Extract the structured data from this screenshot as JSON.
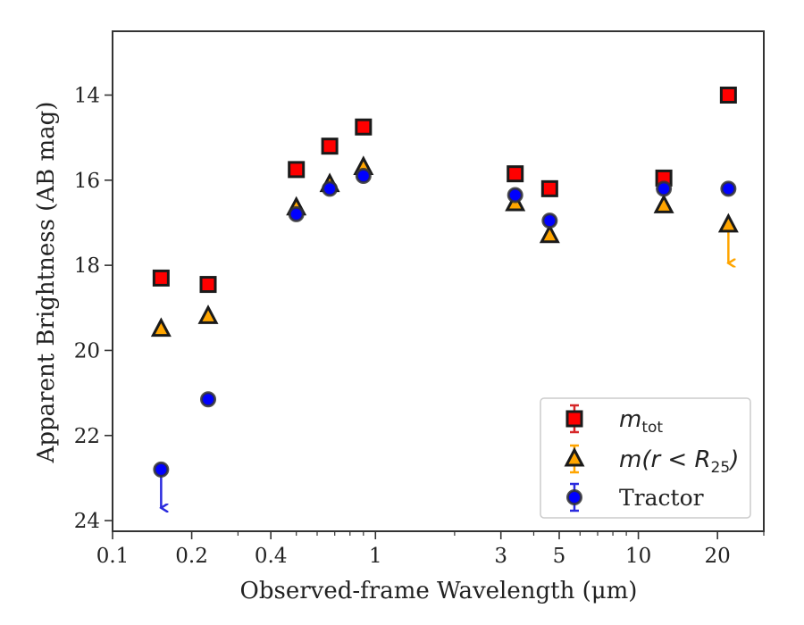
{
  "chart_data": {
    "type": "scatter",
    "title": "",
    "xlabel": "Observed-frame Wavelength (μm)",
    "ylabel": "Apparent Brightness (AB mag)",
    "xscale": "log",
    "yscale": "linear-inverted",
    "xlim": [
      0.1,
      30
    ],
    "ylim": [
      24.25,
      12.5
    ],
    "xticks": [
      0.1,
      0.2,
      0.4,
      1,
      3,
      5,
      10,
      20
    ],
    "xtick_labels": [
      "0.1",
      "0.2",
      "0.4",
      "1",
      "3",
      "5",
      "10",
      "20"
    ],
    "yticks": [
      14,
      16,
      18,
      20,
      22,
      24
    ],
    "ytick_labels": [
      "14",
      "16",
      "18",
      "20",
      "22",
      "24"
    ],
    "grid": false,
    "legend_position": "lower-right",
    "series": [
      {
        "name": "m_tot",
        "legend_main": "m",
        "legend_sub": "tot",
        "marker": "square",
        "face_color": "#ff0000",
        "edge_color": "#1a1a1a",
        "error_color": "#d62728",
        "x": [
          0.153,
          0.231,
          0.5,
          0.67,
          0.9,
          3.4,
          4.6,
          12.5,
          22.0
        ],
        "y": [
          18.3,
          18.45,
          15.75,
          15.2,
          14.75,
          15.85,
          16.2,
          15.95,
          14.0
        ],
        "upper_limits": []
      },
      {
        "name": "m(r < R25)",
        "legend_main": "m(r < R",
        "legend_sub": "25",
        "legend_close": ")",
        "marker": "triangle",
        "face_color": "#ffa500",
        "edge_color": "#1a1a1a",
        "error_color": "#ffa500",
        "x": [
          0.153,
          0.231,
          0.5,
          0.67,
          0.9,
          3.4,
          4.6,
          12.5,
          22.0
        ],
        "y": [
          19.5,
          19.2,
          16.65,
          16.1,
          15.7,
          16.55,
          17.3,
          16.6,
          17.05
        ],
        "upper_limits": [
          22.0
        ],
        "upper_limit_end": 17.95
      },
      {
        "name": "Tractor",
        "legend_main": "Tractor",
        "marker": "circle",
        "face_color": "#0000ff",
        "edge_color": "#333333",
        "error_color": "#2b2bde",
        "x": [
          0.153,
          0.231,
          0.5,
          0.67,
          0.9,
          3.4,
          4.6,
          12.5,
          22.0
        ],
        "y": [
          22.8,
          21.15,
          16.8,
          16.2,
          15.9,
          16.35,
          16.95,
          16.2,
          16.2
        ],
        "upper_limits": [
          0.153
        ],
        "upper_limit_end": 23.7
      }
    ]
  }
}
